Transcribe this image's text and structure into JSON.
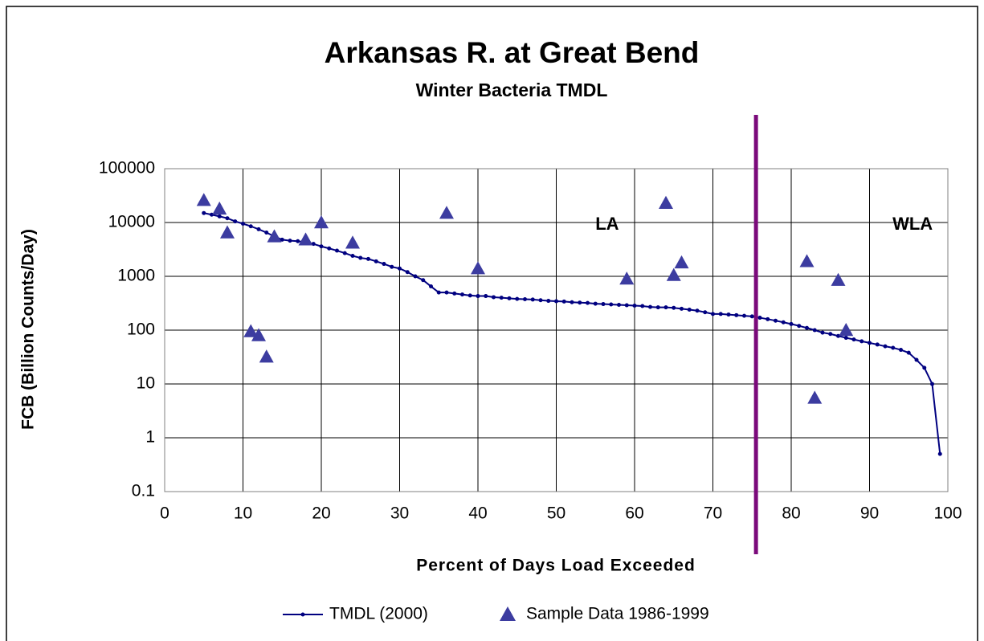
{
  "chart_data": {
    "type": "scatter-line",
    "title": "Arkansas R. at Great Bend",
    "subtitle": "Winter Bacteria TMDL",
    "x_label": "Percent of Days Load Exceeded",
    "y_label": "FCB (Billion Counts/Day)",
    "yscale": "log",
    "xlim": [
      0,
      100
    ],
    "ylim": [
      0.1,
      100000
    ],
    "xticks": [
      0,
      10,
      20,
      30,
      40,
      50,
      60,
      70,
      80,
      90,
      100
    ],
    "yticks": [
      0.1,
      1,
      10,
      100,
      1000,
      10000,
      100000
    ],
    "grid": true,
    "legend": "bottom",
    "divider_x": 75.5,
    "divider_color": "#7b0a7b",
    "annotations": [
      {
        "text": "LA",
        "x": 56.5,
        "y": 9000,
        "color": "#7b0a7b"
      },
      {
        "text": "WLA",
        "x": 95.5,
        "y": 9000,
        "color": "#7b0a7b"
      }
    ],
    "series": [
      {
        "name": "TMDL (2000)",
        "color": "#000080",
        "mode": "line",
        "x": [
          5,
          6,
          7,
          8,
          9,
          10,
          11,
          12,
          13,
          14,
          15,
          16,
          17,
          18,
          19,
          20,
          21,
          22,
          23,
          24,
          25,
          26,
          27,
          28,
          29,
          30,
          31,
          32,
          33,
          34,
          35,
          36,
          37,
          38,
          39,
          40,
          41,
          42,
          43,
          44,
          45,
          46,
          47,
          48,
          49,
          50,
          51,
          52,
          53,
          54,
          55,
          56,
          57,
          58,
          59,
          60,
          61,
          62,
          63,
          64,
          65,
          66,
          67,
          68,
          69,
          70,
          71,
          72,
          73,
          74,
          75,
          76,
          77,
          78,
          79,
          80,
          81,
          82,
          83,
          84,
          85,
          86,
          87,
          88,
          89,
          90,
          91,
          92,
          93,
          94,
          95,
          96,
          97,
          98,
          99
        ],
        "values": [
          15000,
          14000,
          13000,
          12000,
          10500,
          9500,
          8500,
          7500,
          6500,
          5500,
          4800,
          4600,
          4500,
          4300,
          4000,
          3600,
          3300,
          3000,
          2700,
          2400,
          2200,
          2100,
          1900,
          1700,
          1500,
          1400,
          1200,
          1000,
          850,
          650,
          500,
          500,
          480,
          460,
          440,
          430,
          430,
          410,
          400,
          390,
          380,
          375,
          370,
          360,
          350,
          345,
          340,
          330,
          325,
          320,
          310,
          305,
          300,
          295,
          290,
          285,
          280,
          270,
          265,
          265,
          260,
          250,
          240,
          230,
          215,
          200,
          200,
          195,
          190,
          185,
          180,
          170,
          160,
          150,
          140,
          130,
          120,
          110,
          100,
          90,
          85,
          78,
          72,
          67,
          62,
          58,
          54,
          50,
          47,
          43,
          38,
          28,
          20,
          10,
          0.5
        ]
      },
      {
        "name": "Sample Data 1986-1999",
        "color": "#3c3ca0",
        "mode": "triangle",
        "x": [
          5,
          7,
          8,
          11,
          12,
          13,
          14,
          18,
          20,
          24,
          36,
          40,
          59,
          64,
          65,
          66,
          82,
          83,
          86,
          87
        ],
        "values": [
          26000,
          18000,
          6500,
          95,
          80,
          32,
          5500,
          4800,
          10000,
          4200,
          15000,
          1400,
          900,
          23000,
          1050,
          1800,
          1900,
          5.5,
          850,
          100
        ]
      }
    ]
  }
}
